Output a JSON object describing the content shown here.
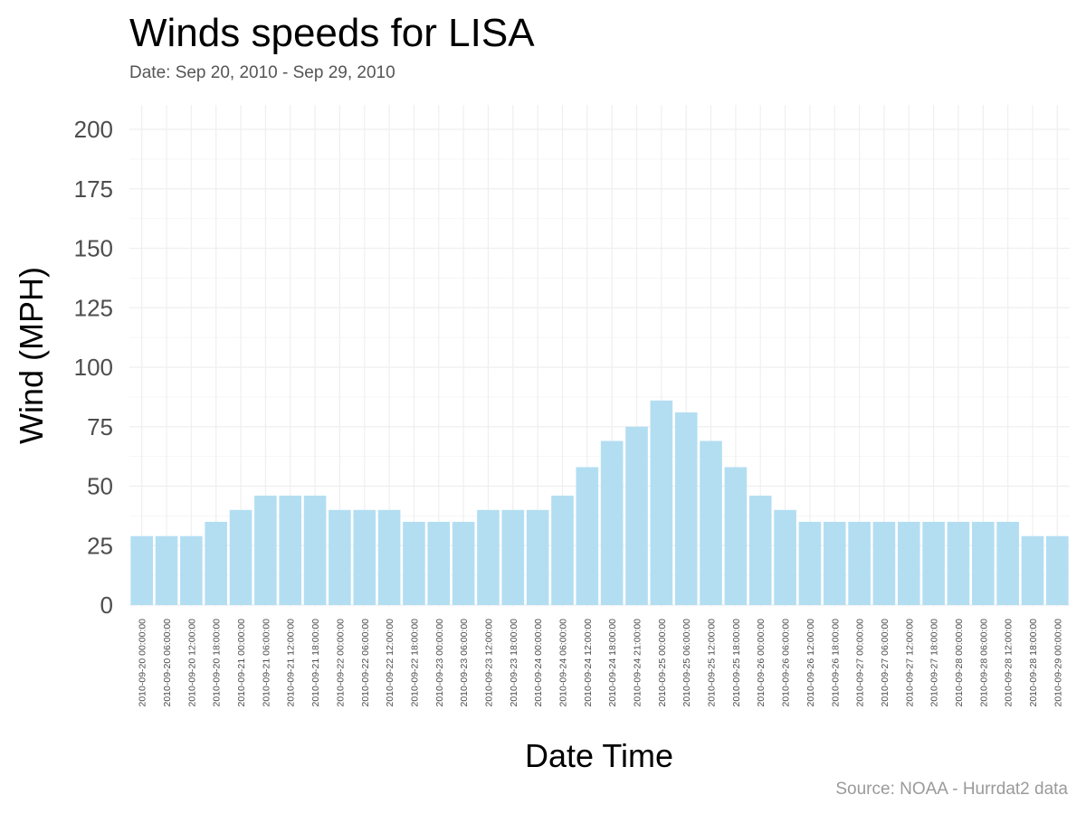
{
  "chart_data": {
    "type": "bar",
    "title": "Winds speeds for LISA",
    "subtitle": "Date:  Sep 20, 2010 - Sep 29, 2010",
    "caption": "Source: NOAA - Hurrdat2 data",
    "xlabel": "Date Time",
    "ylabel": "Wind (MPH)",
    "ylim": [
      0,
      210
    ],
    "yticks": [
      0,
      25,
      50,
      75,
      100,
      125,
      150,
      175,
      200
    ],
    "grid": true,
    "bar_color": "#b3def2",
    "categories": [
      "2010-09-20 00:00:00",
      "2010-09-20 06:00:00",
      "2010-09-20 12:00:00",
      "2010-09-20 18:00:00",
      "2010-09-21 00:00:00",
      "2010-09-21 06:00:00",
      "2010-09-21 12:00:00",
      "2010-09-21 18:00:00",
      "2010-09-22 00:00:00",
      "2010-09-22 06:00:00",
      "2010-09-22 12:00:00",
      "2010-09-22 18:00:00",
      "2010-09-23 00:00:00",
      "2010-09-23 06:00:00",
      "2010-09-23 12:00:00",
      "2010-09-23 18:00:00",
      "2010-09-24 00:00:00",
      "2010-09-24 06:00:00",
      "2010-09-24 12:00:00",
      "2010-09-24 18:00:00",
      "2010-09-24 21:00:00",
      "2010-09-25 00:00:00",
      "2010-09-25 06:00:00",
      "2010-09-25 12:00:00",
      "2010-09-25 18:00:00",
      "2010-09-26 00:00:00",
      "2010-09-26 06:00:00",
      "2010-09-26 12:00:00",
      "2010-09-26 18:00:00",
      "2010-09-27 00:00:00",
      "2010-09-27 06:00:00",
      "2010-09-27 12:00:00",
      "2010-09-27 18:00:00",
      "2010-09-28 00:00:00",
      "2010-09-28 06:00:00",
      "2010-09-28 12:00:00",
      "2010-09-28 18:00:00",
      "2010-09-29 00:00:00"
    ],
    "values": [
      29,
      29,
      29,
      35,
      40,
      46,
      46,
      46,
      40,
      40,
      40,
      35,
      35,
      35,
      40,
      40,
      40,
      46,
      58,
      69,
      75,
      86,
      81,
      69,
      58,
      46,
      40,
      35,
      35,
      35,
      35,
      35,
      35,
      35,
      35,
      35,
      29,
      29
    ]
  }
}
